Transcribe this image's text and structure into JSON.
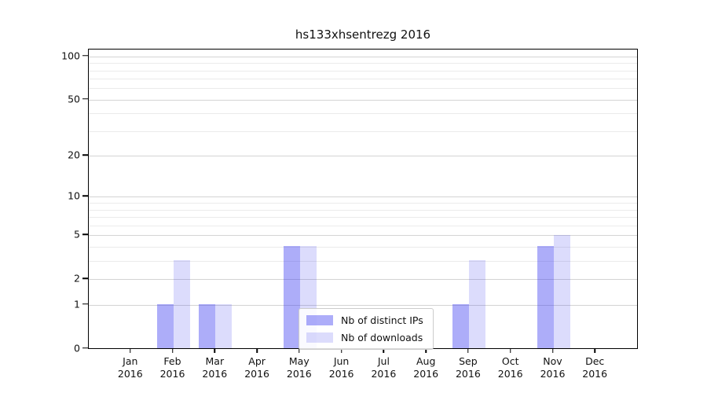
{
  "title": "hs133xhsentrezg 2016",
  "legend": {
    "items": [
      {
        "label": "Nb of distinct IPs",
        "color": "rgba(60,60,240,0.42)"
      },
      {
        "label": "Nb of downloads",
        "color": "rgba(60,60,240,0.18)"
      }
    ]
  },
  "chart_data": {
    "type": "bar",
    "title": "hs133xhsentrezg 2016",
    "categories": [
      "Jan 2016",
      "Feb 2016",
      "Mar 2016",
      "Apr 2016",
      "May 2016",
      "Jun 2016",
      "Jul 2016",
      "Aug 2016",
      "Sep 2016",
      "Oct 2016",
      "Nov 2016",
      "Dec 2016"
    ],
    "series": [
      {
        "name": "Nb of distinct IPs",
        "color": "rgba(60,60,240,0.42)",
        "values": [
          0,
          1,
          1,
          0,
          4,
          0,
          0,
          0,
          1,
          0,
          4,
          0
        ]
      },
      {
        "name": "Nb of downloads",
        "color": "rgba(60,60,240,0.18)",
        "values": [
          0,
          3,
          1,
          0,
          4,
          0,
          0,
          0,
          3,
          0,
          5,
          0
        ]
      }
    ],
    "xlabel": "",
    "ylabel": "",
    "yscale": "log1p",
    "y_major_ticks": [
      0,
      1,
      2,
      5,
      10,
      20,
      50,
      100
    ],
    "y_minor_gridlines": [
      3,
      4,
      6,
      7,
      8,
      9,
      30,
      40,
      60,
      70,
      80,
      90
    ],
    "ylim": [
      0,
      112
    ],
    "grid": true,
    "legend_position": "lower center",
    "colors": {
      "major_grid": "#d4d4d4",
      "minor_grid": "#ebebeb",
      "axis": "#000000"
    }
  }
}
